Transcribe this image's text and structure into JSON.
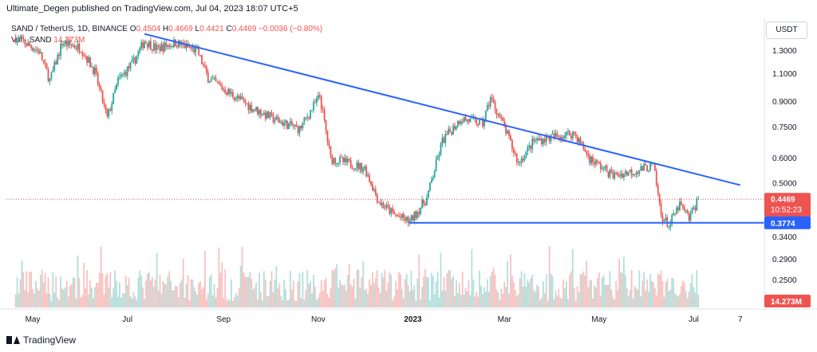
{
  "header": {
    "published": "Ultimate_Degen published on TradingView.com, Jul 04, 2023 18:07 UTC+5"
  },
  "legend": {
    "symbol": "SAND / TetherUS, 1D, BINANCE",
    "o_label": "O",
    "o_value": "0.4504",
    "h_label": "H",
    "h_value": "0.4669",
    "l_label": "L",
    "l_value": "0.4421",
    "c_label": "C",
    "c_value": "0.4469",
    "change": "−0.0036 (−0.80%)",
    "vol_label": "Vol · SAND",
    "vol_value": "14.273M"
  },
  "currency": "USDT",
  "footer": {
    "brand": "TradingView"
  },
  "colors": {
    "up": "#26a69a",
    "down": "#ef5350",
    "trendline": "#2962ff",
    "price_badge": "#ef5350",
    "support_badge": "#2962ff",
    "vol_up": "#b2dfdb",
    "vol_down": "#f7c2c0"
  },
  "chart_data": {
    "type": "candlestick",
    "price_axis": {
      "scale": "log",
      "ticks": [
        "1.3000",
        "1.1000",
        "0.9000",
        "0.7500",
        "0.6000",
        "0.5000",
        "0.3400",
        "0.2900",
        "0.2500"
      ],
      "tick_values": [
        1.3,
        1.1,
        0.9,
        0.75,
        0.6,
        0.5,
        0.34,
        0.29,
        0.25
      ]
    },
    "time_axis": {
      "labels": [
        "May",
        "Jul",
        "Sep",
        "Nov",
        "2023",
        "Mar",
        "May",
        "Jul",
        "7"
      ],
      "dates": [
        "2022-05-01",
        "2022-07-01",
        "2022-09-01",
        "2022-11-01",
        "2023-01-01",
        "2023-03-01",
        "2023-05-01",
        "2023-07-01",
        "2023-07-31"
      ]
    },
    "last_price": {
      "value": 0.4469,
      "label": "0.4469",
      "countdown": "10:52:23"
    },
    "support_level": {
      "value": 0.3774,
      "label": "0.3774",
      "from_date": "2022-12-30",
      "to_date": "2023-07-31"
    },
    "trendline": {
      "from_date": "2022-07-12",
      "from_value": 1.47,
      "to_date": "2023-07-31",
      "to_value": 0.495
    },
    "volume_badge": "14.273M",
    "closes": [
      {
        "date": "2022-04-20",
        "value": 1.43
      },
      {
        "date": "2022-05-05",
        "value": 1.3
      },
      {
        "date": "2022-05-12",
        "value": 1.05
      },
      {
        "date": "2022-05-20",
        "value": 1.38
      },
      {
        "date": "2022-06-01",
        "value": 1.33
      },
      {
        "date": "2022-06-10",
        "value": 1.12
      },
      {
        "date": "2022-06-18",
        "value": 0.8
      },
      {
        "date": "2022-06-25",
        "value": 1.05
      },
      {
        "date": "2022-07-05",
        "value": 1.2
      },
      {
        "date": "2022-07-12",
        "value": 1.4
      },
      {
        "date": "2022-07-20",
        "value": 1.32
      },
      {
        "date": "2022-08-01",
        "value": 1.38
      },
      {
        "date": "2022-08-15",
        "value": 1.3
      },
      {
        "date": "2022-08-22",
        "value": 1.07
      },
      {
        "date": "2022-09-05",
        "value": 0.96
      },
      {
        "date": "2022-09-20",
        "value": 0.86
      },
      {
        "date": "2022-10-05",
        "value": 0.79
      },
      {
        "date": "2022-10-20",
        "value": 0.74
      },
      {
        "date": "2022-11-02",
        "value": 0.94
      },
      {
        "date": "2022-11-09",
        "value": 0.6
      },
      {
        "date": "2022-11-20",
        "value": 0.58
      },
      {
        "date": "2022-12-01",
        "value": 0.56
      },
      {
        "date": "2022-12-10",
        "value": 0.44
      },
      {
        "date": "2022-12-20",
        "value": 0.4
      },
      {
        "date": "2022-12-30",
        "value": 0.38
      },
      {
        "date": "2023-01-10",
        "value": 0.45
      },
      {
        "date": "2023-01-20",
        "value": 0.68
      },
      {
        "date": "2023-02-01",
        "value": 0.8
      },
      {
        "date": "2023-02-15",
        "value": 0.77
      },
      {
        "date": "2023-02-20",
        "value": 0.93
      },
      {
        "date": "2023-03-01",
        "value": 0.75
      },
      {
        "date": "2023-03-10",
        "value": 0.58
      },
      {
        "date": "2023-03-20",
        "value": 0.68
      },
      {
        "date": "2023-04-01",
        "value": 0.7
      },
      {
        "date": "2023-04-15",
        "value": 0.72
      },
      {
        "date": "2023-04-25",
        "value": 0.6
      },
      {
        "date": "2023-05-10",
        "value": 0.53
      },
      {
        "date": "2023-05-25",
        "value": 0.55
      },
      {
        "date": "2023-06-05",
        "value": 0.57
      },
      {
        "date": "2023-06-10",
        "value": 0.4
      },
      {
        "date": "2023-06-15",
        "value": 0.37
      },
      {
        "date": "2023-06-22",
        "value": 0.43
      },
      {
        "date": "2023-06-28",
        "value": 0.39
      },
      {
        "date": "2023-07-04",
        "value": 0.4469
      }
    ]
  }
}
